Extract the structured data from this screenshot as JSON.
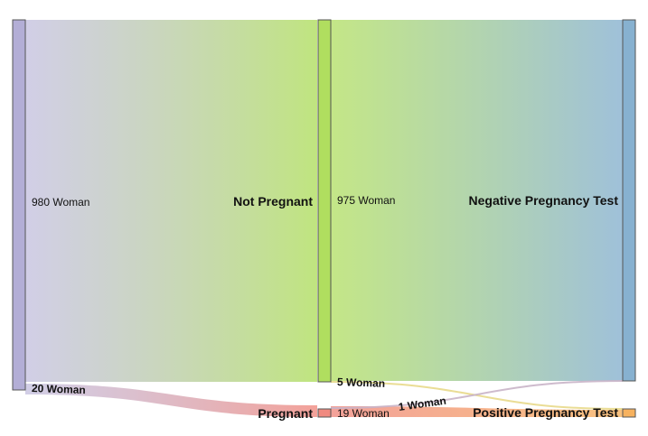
{
  "diagram": {
    "nodes": {
      "source": {
        "label": "",
        "color": "#b3aed6"
      },
      "not_pregnant": {
        "label": "Not Pregnant",
        "color": "#b0de5f"
      },
      "pregnant": {
        "label": "Pregnant",
        "color": "#f08a80"
      },
      "negative": {
        "label": "Negative Pregnancy Test",
        "color": "#87b1d0"
      },
      "positive": {
        "label": "Positive Pregnancy Test",
        "color": "#f7b25f"
      }
    },
    "flows": [
      {
        "from": "source",
        "to": "not_pregnant",
        "value": 980,
        "label": "980 Woman"
      },
      {
        "from": "source",
        "to": "pregnant",
        "value": 20,
        "label": "20 Woman"
      },
      {
        "from": "not_pregnant",
        "to": "negative",
        "value": 975,
        "label": "975 Woman"
      },
      {
        "from": "not_pregnant",
        "to": "positive",
        "value": 5,
        "label": "5 Woman"
      },
      {
        "from": "pregnant",
        "to": "positive",
        "value": 19,
        "label": "19 Woman"
      },
      {
        "from": "pregnant",
        "to": "negative",
        "value": 1,
        "label": "1 Woman"
      }
    ]
  }
}
